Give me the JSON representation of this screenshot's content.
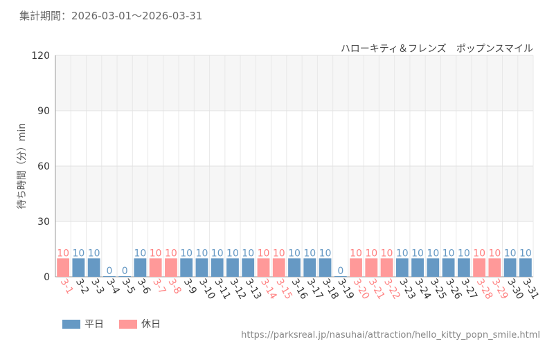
{
  "header": {
    "period_label": "集計期間：2026-03-01～2026-03-31"
  },
  "chart_data": {
    "type": "bar",
    "title": "",
    "subtitle": "ハローキティ＆フレンズ　ポップンスマイル",
    "ylabel": "待ち時間（分）min",
    "xlabel": "",
    "ylim": [
      0,
      120
    ],
    "yticks": [
      0,
      30,
      60,
      90,
      120
    ],
    "grid": true,
    "legend_position": "bottom-left",
    "categories": [
      "3-1",
      "3-2",
      "3-3",
      "3-4",
      "3-5",
      "3-6",
      "3-7",
      "3-8",
      "3-9",
      "3-10",
      "3-11",
      "3-12",
      "3-13",
      "3-14",
      "3-15",
      "3-16",
      "3-17",
      "3-18",
      "3-19",
      "3-20",
      "3-21",
      "3-22",
      "3-23",
      "3-24",
      "3-25",
      "3-26",
      "3-27",
      "3-28",
      "3-29",
      "3-30",
      "3-31"
    ],
    "values": [
      10,
      10,
      10,
      0,
      0,
      10,
      10,
      10,
      10,
      10,
      10,
      10,
      10,
      10,
      10,
      10,
      10,
      10,
      0,
      10,
      10,
      10,
      10,
      10,
      10,
      10,
      10,
      10,
      10,
      10,
      10
    ],
    "day_type": [
      "holiday",
      "weekday",
      "weekday",
      "weekday",
      "weekday",
      "weekday",
      "holiday",
      "holiday",
      "weekday",
      "weekday",
      "weekday",
      "weekday",
      "weekday",
      "holiday",
      "holiday",
      "weekday",
      "weekday",
      "weekday",
      "weekday",
      "holiday",
      "holiday",
      "holiday",
      "weekday",
      "weekday",
      "weekday",
      "weekday",
      "weekday",
      "holiday",
      "holiday",
      "weekday",
      "weekday"
    ],
    "legend": [
      {
        "key": "weekday",
        "label": "平日"
      },
      {
        "key": "holiday",
        "label": "休日"
      }
    ],
    "colors": {
      "weekday": "#6699c4",
      "holiday": "#ff9999",
      "weekday_label": "#6699c4",
      "holiday_label": "#ff8080",
      "weekday_tick": "#333333",
      "holiday_tick": "#ff8080"
    }
  },
  "footer": {
    "source_url": "https://parksreal.jp/nasuhai/attraction/hello_kitty_popn_smile.html"
  }
}
